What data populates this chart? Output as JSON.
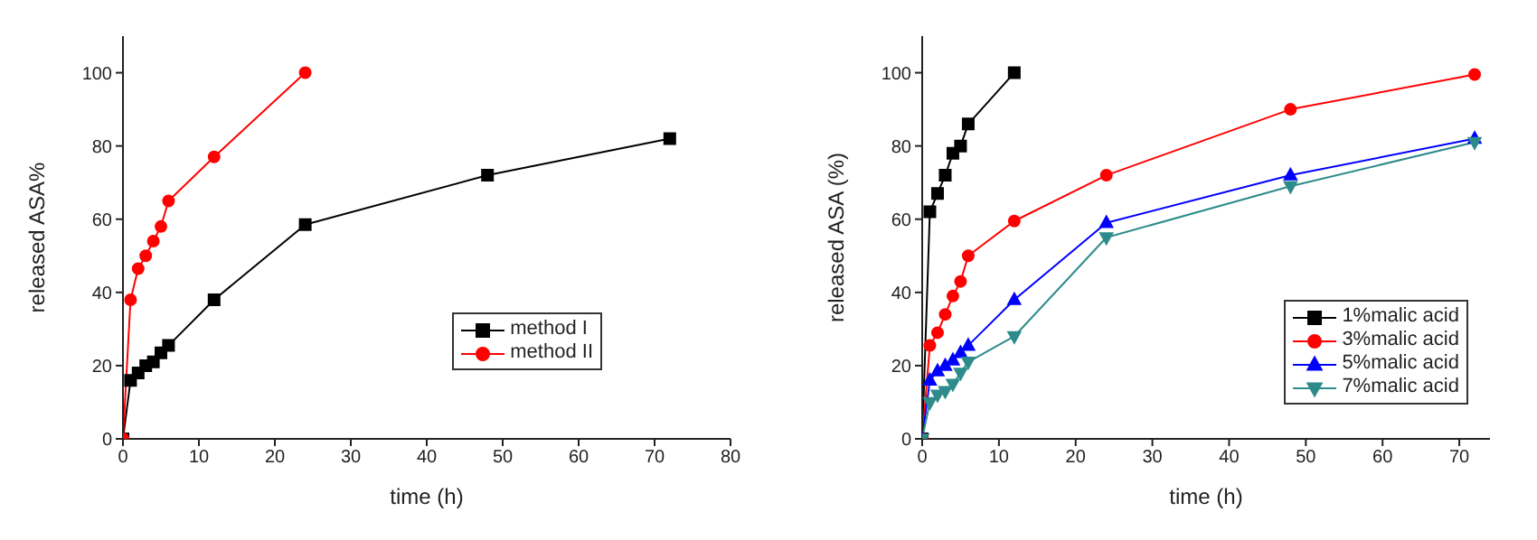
{
  "chart_data": [
    {
      "type": "line",
      "xlabel": "time (h)",
      "ylabel": "released ASA%",
      "xlim": [
        0,
        80
      ],
      "xticks": [
        0,
        10,
        20,
        30,
        40,
        50,
        60,
        70,
        80
      ],
      "ylim": [
        0,
        110
      ],
      "yticks": [
        0,
        20,
        40,
        60,
        80,
        100
      ],
      "grid": false,
      "legend": "right",
      "series": [
        {
          "name": "method I",
          "color": "#000000",
          "marker": "square",
          "x": [
            0,
            1,
            2,
            3,
            4,
            5,
            6,
            12,
            24,
            48,
            72
          ],
          "values": [
            0,
            16,
            18,
            20,
            21,
            23.5,
            25.5,
            38,
            58.5,
            72,
            82
          ]
        },
        {
          "name": "method II",
          "color": "#ff0000",
          "marker": "circle",
          "x": [
            0,
            1,
            2,
            3,
            4,
            5,
            6,
            12,
            24
          ],
          "values": [
            0,
            38,
            46.5,
            50,
            54,
            58,
            65,
            77,
            100
          ]
        }
      ]
    },
    {
      "type": "line",
      "xlabel": "time (h)",
      "ylabel": "released ASA (%)",
      "xlim": [
        0,
        74
      ],
      "xticks": [
        0,
        10,
        20,
        30,
        40,
        50,
        60,
        70
      ],
      "ylim": [
        0,
        110
      ],
      "yticks": [
        0,
        20,
        40,
        60,
        80,
        100
      ],
      "grid": false,
      "legend": "bottom right",
      "series": [
        {
          "name": "1%malic acid",
          "color": "#000000",
          "marker": "square",
          "x": [
            0,
            1,
            2,
            3,
            4,
            5,
            6,
            12
          ],
          "values": [
            0,
            62,
            67,
            72,
            78,
            80,
            86,
            100
          ]
        },
        {
          "name": "3%malic acid",
          "color": "#ff0000",
          "marker": "circle",
          "x": [
            0,
            1,
            2,
            3,
            4,
            5,
            6,
            12,
            24,
            48,
            72
          ],
          "values": [
            0,
            25.5,
            29,
            34,
            39,
            43,
            50,
            59.5,
            72,
            90,
            99.5
          ]
        },
        {
          "name": "5%malic acid",
          "color": "#0000ff",
          "marker": "triangle",
          "x": [
            0,
            1,
            2,
            3,
            4,
            5,
            6,
            12,
            24,
            48,
            72
          ],
          "values": [
            0,
            16,
            18.5,
            20,
            21.5,
            23.5,
            25.5,
            38,
            59,
            72,
            82
          ]
        },
        {
          "name": "7%malic acid",
          "color": "#2e8b8b",
          "marker": "triangle-down",
          "x": [
            0,
            1,
            2,
            3,
            4,
            5,
            6,
            12,
            24,
            48,
            72
          ],
          "values": [
            0,
            10,
            12,
            13,
            15,
            18,
            21,
            28,
            55,
            69,
            81
          ]
        }
      ]
    }
  ]
}
